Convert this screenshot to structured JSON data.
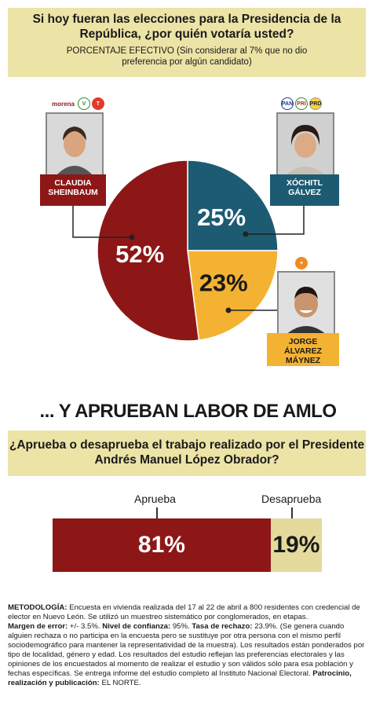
{
  "header": {
    "title": "Si hoy fueran las elecciones para la Presidencia de la República, ¿por quién votaría usted?",
    "subtitle": "PORCENTAJE EFECTIVO (Sin considerar al 7% que no dio preferencia por algún candidato)"
  },
  "candidates": [
    {
      "name": "CLAUDIA SHEINBAUM",
      "party_label": "morena"
    },
    {
      "name": "XÓCHITL GÁLVEZ",
      "parties": [
        "PAN",
        "PRI",
        "PRD"
      ]
    },
    {
      "name": "JORGE ÁLVAREZ MÁYNEZ"
    }
  ],
  "colors": {
    "sheinbaum": "#8d1717",
    "galvez": "#1d5b73",
    "maynez": "#f4b233",
    "aprueba": "#8d1717",
    "desaprueba": "#e4da9c",
    "header_bg": "#ece3a6"
  },
  "chart_data": [
    {
      "type": "pie",
      "title": "Si hoy fueran las elecciones para la Presidencia de la República, ¿por quién votaría usted?",
      "labels": [
        "CLAUDIA SHEINBAUM",
        "XÓCHITL GÁLVEZ",
        "JORGE ÁLVAREZ MÁYNEZ"
      ],
      "values": [
        52,
        25,
        23
      ],
      "value_labels": [
        "52%",
        "25%",
        "23%"
      ]
    },
    {
      "type": "bar",
      "orientation": "horizontal-stacked",
      "title": "¿Aprueba o desaprueba el trabajo realizado por el Presidente Andrés Manuel López Obrador?",
      "categories": [
        "Aprueba",
        "Desaprueba"
      ],
      "values": [
        81,
        19
      ],
      "value_labels": [
        "81%",
        "19%"
      ]
    }
  ],
  "section2": {
    "title": "... Y APRUEBAN LABOR DE AMLO",
    "question": "¿Aprueba o desaprueba el trabajo realizado por el Presidente Andrés Manuel López Obrador?",
    "label_aprueba": "Aprueba",
    "label_desaprueba": "Desaprueba"
  },
  "methodology": {
    "label1": "METODOLOGÍA:",
    "text1": "Encuesta en vivienda realizada del 17 al 22 de abril a 800 residentes con credencial de elector en Nuevo León. Se utilizó un muestreo sistemático por conglomerados, en etapas.",
    "label2": "Margen de error:",
    "text2": "+/- 3.5%.",
    "label3": "Nivel de confianza:",
    "text3": "95%.",
    "label4": "Tasa de rechazo:",
    "text4": "23.9%. (Se genera cuando alguien rechaza o no participa en la encuesta pero se sustituye por otra persona con el mismo perfil sociodemográfico para mantener la representatividad de la muestra). Los resultados están ponderados por tipo de localidad, género y edad. Los resultados del estudio reflejan las preferencias electorales y las opiniones de los encuestados al momento de realizar el estudio y son válidos sólo para esa población y fechas específicas. Se entrega informe del estudio completo al Instituto Nacional Electoral.",
    "label5": "Patrocinio, realización y publicación:",
    "text5": "EL NORTE."
  }
}
